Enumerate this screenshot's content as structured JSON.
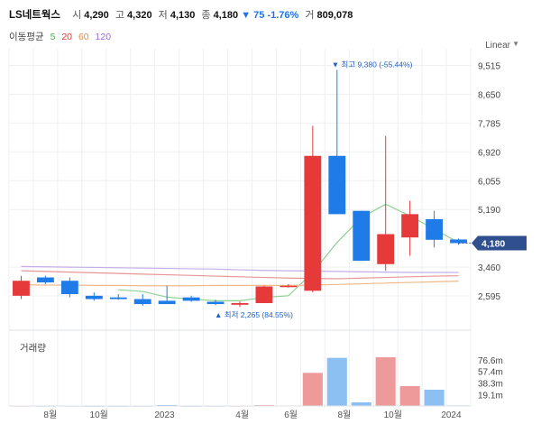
{
  "header": {
    "stock_name": "LS네트웍스",
    "open_label": "시",
    "open": "4,290",
    "high_label": "고",
    "high": "4,320",
    "low_label": "저",
    "low": "4,130",
    "close_label": "종",
    "close": "4,180",
    "change": "▼ 75 -1.76%",
    "volume_label": "거",
    "volume": "809,078"
  },
  "ma_legend": {
    "label": "이동평균",
    "items": [
      {
        "name": "5",
        "color": "#4caf50"
      },
      {
        "name": "20",
        "color": "#e53935"
      },
      {
        "name": "60",
        "color": "#ef8a3c"
      },
      {
        "name": "120",
        "color": "#9c6fd6"
      }
    ]
  },
  "scale_toggle": "Linear",
  "chart_data": {
    "type": "candlestick",
    "price_axis": {
      "ticks": [
        "9,515",
        "8,650",
        "7,785",
        "6,920",
        "6,055",
        "5,190",
        "3,460",
        "2,595"
      ],
      "tick_values": [
        9515,
        8650,
        7785,
        6920,
        6055,
        5190,
        3460,
        2595
      ],
      "range": [
        2000,
        9800
      ]
    },
    "time_axis": {
      "ticks": [
        "8월",
        "10월",
        "2023",
        "4월",
        "6월",
        "8월",
        "10월",
        "2024"
      ]
    },
    "candles": [
      {
        "o": 2600,
        "h": 3200,
        "l": 2500,
        "c": 3050
      },
      {
        "o": 3150,
        "h": 3200,
        "l": 2950,
        "c": 3000
      },
      {
        "o": 3050,
        "h": 3150,
        "l": 2550,
        "c": 2650
      },
      {
        "o": 2600,
        "h": 2700,
        "l": 2450,
        "c": 2500
      },
      {
        "o": 2550,
        "h": 2650,
        "l": 2480,
        "c": 2500
      },
      {
        "o": 2500,
        "h": 2650,
        "l": 2300,
        "c": 2350
      },
      {
        "o": 2450,
        "h": 2900,
        "l": 2380,
        "c": 2350
      },
      {
        "o": 2550,
        "h": 2600,
        "l": 2420,
        "c": 2450
      },
      {
        "o": 2420,
        "h": 2480,
        "l": 2320,
        "c": 2350
      },
      {
        "o": 2330,
        "h": 2430,
        "l": 2265,
        "c": 2380
      },
      {
        "o": 2380,
        "h": 2900,
        "l": 2380,
        "c": 2880
      },
      {
        "o": 2880,
        "h": 2950,
        "l": 2850,
        "c": 2900
      },
      {
        "o": 2750,
        "h": 7700,
        "l": 2700,
        "c": 6800
      },
      {
        "o": 6800,
        "h": 9380,
        "l": 5050,
        "c": 5050
      },
      {
        "o": 5150,
        "h": 5150,
        "l": 3650,
        "c": 3650
      },
      {
        "o": 3550,
        "h": 7400,
        "l": 3350,
        "c": 4450
      },
      {
        "o": 4350,
        "h": 5450,
        "l": 3800,
        "c": 5050
      },
      {
        "o": 4900,
        "h": 5150,
        "l": 4050,
        "c": 4280
      },
      {
        "o": 4290,
        "h": 4320,
        "l": 4130,
        "c": 4180
      }
    ],
    "moving_averages": {
      "ma5": [
        null,
        null,
        null,
        null,
        2780,
        2730,
        2560,
        2500,
        2450,
        2450,
        2550,
        2600,
        3300,
        4200,
        4950,
        5350,
        5000,
        4600,
        4200
      ],
      "ma20": [
        3350,
        3330,
        3310,
        3290,
        3270,
        3250,
        3230,
        3210,
        3190,
        3170,
        3150,
        3130,
        3120,
        3110,
        3130,
        3150,
        3170,
        3190,
        3200
      ],
      "ma60": [
        2930,
        2920,
        2920,
        2910,
        2910,
        2900,
        2900,
        2900,
        2910,
        2910,
        2910,
        2910,
        2920,
        2940,
        2960,
        2980,
        3000,
        3020,
        3040
      ],
      "ma120": [
        3480,
        3470,
        3460,
        3450,
        3440,
        3430,
        3420,
        3410,
        3400,
        3380,
        3360,
        3350,
        3340,
        3330,
        3320,
        3310,
        3300,
        3300,
        3300
      ]
    },
    "annotations": {
      "high": {
        "text": "▼ 최고 9,380 (-55.44%)"
      },
      "low": {
        "text": "▲ 최저 2,265 (84.55%)"
      },
      "current_price": "4,180"
    },
    "volume": {
      "title": "거래량",
      "ticks": [
        "76.6m",
        "57.4m",
        "38.3m",
        "19.1m"
      ],
      "tick_values": [
        76.6,
        57.4,
        38.3,
        19.1
      ],
      "values": [
        0.6,
        0.5,
        0.6,
        0.4,
        0.4,
        0.5,
        1.6,
        0.4,
        0.5,
        0.6,
        1.4,
        0.8,
        55,
        80,
        6,
        81,
        33,
        27,
        1.0
      ]
    }
  }
}
